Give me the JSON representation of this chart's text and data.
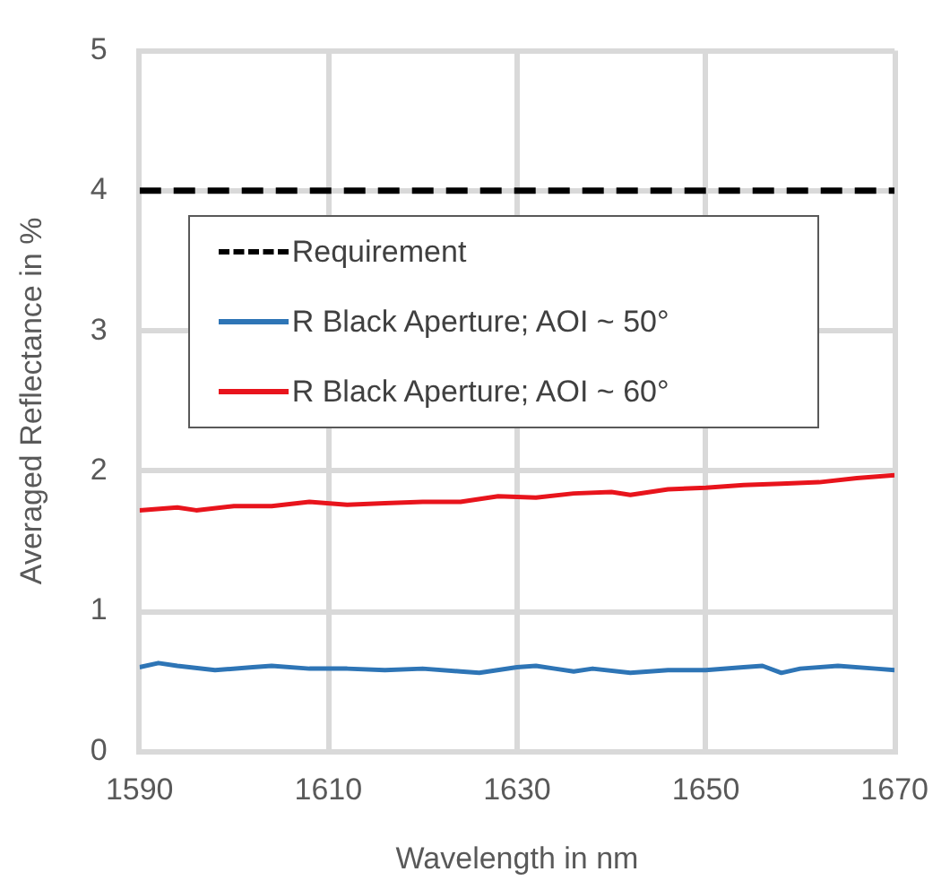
{
  "chart_data": {
    "type": "line",
    "xlabel": "Wavelength in nm",
    "ylabel": "Averaged Reflectance in %",
    "xlim": [
      1590,
      1670
    ],
    "xticks": [
      1590,
      1610,
      1630,
      1650,
      1670
    ],
    "ylim": [
      0,
      5
    ],
    "yticks": [
      0,
      1,
      2,
      3,
      4,
      5
    ],
    "grid": true,
    "legend": "top left",
    "marker": "none",
    "series": [
      {
        "name": "Requirement",
        "color": "#000000",
        "line_style": "dashed",
        "x": [
          1590,
          1670
        ],
        "values": [
          4,
          4
        ]
      },
      {
        "name": "R Black Aperture; AOI ~ 50°",
        "color": "#2e75b6",
        "line_style": "solid",
        "x": [
          1590,
          1592,
          1594,
          1598,
          1602,
          1604,
          1608,
          1612,
          1616,
          1620,
          1624,
          1626,
          1630,
          1632,
          1634,
          1636,
          1638,
          1642,
          1646,
          1650,
          1654,
          1656,
          1658,
          1660,
          1664,
          1668,
          1670
        ],
        "values": [
          0.6,
          0.63,
          0.61,
          0.58,
          0.6,
          0.61,
          0.59,
          0.59,
          0.58,
          0.59,
          0.57,
          0.56,
          0.6,
          0.61,
          0.59,
          0.57,
          0.59,
          0.56,
          0.58,
          0.58,
          0.6,
          0.61,
          0.56,
          0.59,
          0.61,
          0.59,
          0.58
        ]
      },
      {
        "name": "R Black Aperture; AOI ~ 60°",
        "color": "#e8141c",
        "line_style": "solid",
        "x": [
          1590,
          1594,
          1596,
          1600,
          1604,
          1608,
          1612,
          1616,
          1620,
          1624,
          1628,
          1632,
          1636,
          1640,
          1642,
          1646,
          1650,
          1654,
          1658,
          1662,
          1666,
          1670
        ],
        "values": [
          1.72,
          1.74,
          1.72,
          1.75,
          1.75,
          1.78,
          1.76,
          1.77,
          1.78,
          1.78,
          1.82,
          1.81,
          1.84,
          1.85,
          1.83,
          1.87,
          1.88,
          1.9,
          1.91,
          1.92,
          1.95,
          1.97
        ]
      }
    ]
  }
}
